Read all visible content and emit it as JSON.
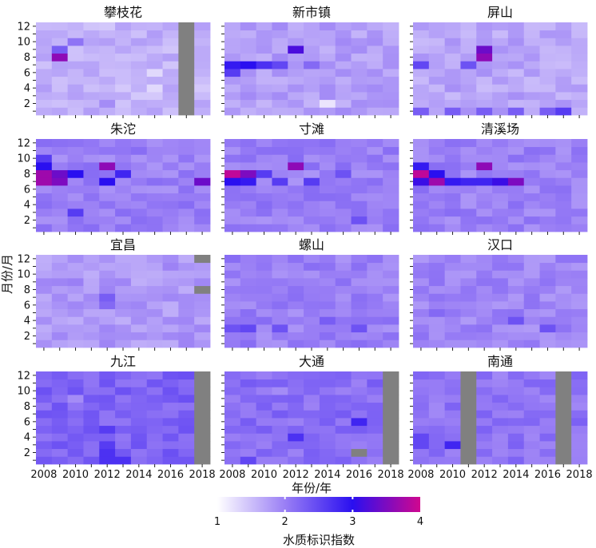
{
  "chart_data": {
    "type": "heatmap",
    "xlabel": "年份/年",
    "ylabel": "月份/月",
    "x_ticks": [
      2008,
      2010,
      2012,
      2014,
      2016,
      2018
    ],
    "y_ticks": [
      2,
      4,
      6,
      8,
      10,
      12
    ],
    "years": [
      2008,
      2009,
      2010,
      2011,
      2012,
      2013,
      2014,
      2015,
      2016,
      2017,
      2018
    ],
    "months": [
      1,
      2,
      3,
      4,
      5,
      6,
      7,
      8,
      9,
      10,
      11,
      12
    ],
    "colorbar": {
      "label": "水质标识指数",
      "range": [
        1,
        4
      ],
      "ticks": [
        1,
        2,
        3,
        4
      ],
      "colors": [
        "#ffffff",
        "#9a7ff5",
        "#2a0ff0",
        "#d0078f"
      ],
      "missing_color": "#808080"
    },
    "panels": [
      {
        "station": "攀枝花",
        "base": 1.6,
        "cells": [
          {
            "year": 2009,
            "month": 8,
            "value": 3.6
          },
          {
            "year": 2009,
            "month": 9,
            "value": 2.3
          },
          {
            "year": 2010,
            "month": 10,
            "value": 2.1
          },
          {
            "year": 2012,
            "month": 2,
            "value": 1.9
          },
          {
            "year": 2015,
            "month": 4,
            "value": 1.3
          },
          {
            "year": 2015,
            "month": 6,
            "value": 1.3
          }
        ],
        "missing": [
          {
            "year": 2017,
            "months": [
              1,
              2,
              3,
              4,
              5,
              6,
              7,
              8,
              9,
              10,
              11,
              12
            ]
          }
        ]
      },
      {
        "station": "新市镇",
        "base": 1.75,
        "cells": [
          {
            "year": 2008,
            "month": 6,
            "value": 2.6
          },
          {
            "year": 2008,
            "month": 7,
            "value": 2.9
          },
          {
            "year": 2009,
            "month": 7,
            "value": 3.0
          },
          {
            "year": 2010,
            "month": 7,
            "value": 2.7
          },
          {
            "year": 2011,
            "month": 7,
            "value": 2.5
          },
          {
            "year": 2012,
            "month": 9,
            "value": 3.2
          },
          {
            "year": 2013,
            "month": 7,
            "value": 2.2
          },
          {
            "year": 2014,
            "month": 2,
            "value": 1.2
          }
        ],
        "missing": []
      },
      {
        "station": "屏山",
        "base": 1.7,
        "cells": [
          {
            "year": 2012,
            "month": 8,
            "value": 3.6
          },
          {
            "year": 2012,
            "month": 9,
            "value": 3.4
          },
          {
            "year": 2008,
            "month": 7,
            "value": 2.5
          },
          {
            "year": 2011,
            "month": 7,
            "value": 2.4
          },
          {
            "year": 2008,
            "month": 1,
            "value": 2.3
          },
          {
            "year": 2010,
            "month": 1,
            "value": 2.3
          },
          {
            "year": 2012,
            "month": 1,
            "value": 2.3
          },
          {
            "year": 2014,
            "month": 1,
            "value": 2.3
          },
          {
            "year": 2016,
            "month": 1,
            "value": 2.3
          },
          {
            "year": 2017,
            "month": 1,
            "value": 2.6
          }
        ],
        "missing": []
      },
      {
        "station": "朱沱",
        "base": 2.0,
        "cells": [
          {
            "year": 2008,
            "month": 7,
            "value": 3.7
          },
          {
            "year": 2008,
            "month": 8,
            "value": 3.7
          },
          {
            "year": 2009,
            "month": 7,
            "value": 3.5
          },
          {
            "year": 2009,
            "month": 8,
            "value": 3.4
          },
          {
            "year": 2008,
            "month": 9,
            "value": 3.0
          },
          {
            "year": 2010,
            "month": 8,
            "value": 3.0
          },
          {
            "year": 2012,
            "month": 9,
            "value": 3.6
          },
          {
            "year": 2012,
            "month": 7,
            "value": 3.0
          },
          {
            "year": 2013,
            "month": 8,
            "value": 2.8
          },
          {
            "year": 2018,
            "month": 7,
            "value": 3.4
          },
          {
            "year": 2008,
            "month": 10,
            "value": 2.6
          },
          {
            "year": 2010,
            "month": 3,
            "value": 2.6
          }
        ],
        "missing": []
      },
      {
        "station": "寸滩",
        "base": 2.0,
        "cells": [
          {
            "year": 2008,
            "month": 8,
            "value": 3.9
          },
          {
            "year": 2009,
            "month": 8,
            "value": 3.5
          },
          {
            "year": 2008,
            "month": 7,
            "value": 3.0
          },
          {
            "year": 2009,
            "month": 7,
            "value": 2.9
          },
          {
            "year": 2010,
            "month": 8,
            "value": 2.6
          },
          {
            "year": 2012,
            "month": 9,
            "value": 3.6
          },
          {
            "year": 2011,
            "month": 7,
            "value": 2.6
          },
          {
            "year": 2013,
            "month": 7,
            "value": 2.6
          },
          {
            "year": 2015,
            "month": 8,
            "value": 2.4
          },
          {
            "year": 2016,
            "month": 2,
            "value": 2.4
          }
        ],
        "missing": []
      },
      {
        "station": "清溪场",
        "base": 2.0,
        "cells": [
          {
            "year": 2008,
            "month": 8,
            "value": 3.9
          },
          {
            "year": 2009,
            "month": 7,
            "value": 3.7
          },
          {
            "year": 2008,
            "month": 7,
            "value": 3.1
          },
          {
            "year": 2009,
            "month": 8,
            "value": 3.0
          },
          {
            "year": 2008,
            "month": 9,
            "value": 2.9
          },
          {
            "year": 2010,
            "month": 7,
            "value": 2.9
          },
          {
            "year": 2011,
            "month": 7,
            "value": 2.8
          },
          {
            "year": 2012,
            "month": 7,
            "value": 2.8
          },
          {
            "year": 2012,
            "month": 9,
            "value": 3.6
          },
          {
            "year": 2013,
            "month": 7,
            "value": 3.1
          },
          {
            "year": 2014,
            "month": 7,
            "value": 3.5
          }
        ],
        "missing": []
      },
      {
        "station": "宜昌",
        "base": 1.8,
        "cells": [
          {
            "year": 2012,
            "month": 6,
            "value": 2.2
          },
          {
            "year": 2012,
            "month": 7,
            "value": 2.3
          },
          {
            "year": 2010,
            "month": 9,
            "value": 2.0
          }
        ],
        "missing": [
          {
            "year": 2018,
            "months": [
              8,
              12
            ]
          }
        ]
      },
      {
        "station": "螺山",
        "base": 2.0,
        "cells": [
          {
            "year": 2008,
            "month": 3,
            "value": 2.4
          },
          {
            "year": 2009,
            "month": 3,
            "value": 2.5
          },
          {
            "year": 2011,
            "month": 3,
            "value": 2.4
          },
          {
            "year": 2014,
            "month": 4,
            "value": 2.3
          },
          {
            "year": 2016,
            "month": 3,
            "value": 2.4
          }
        ],
        "missing": []
      },
      {
        "station": "汉口",
        "base": 1.95,
        "cells": [
          {
            "year": 2014,
            "month": 4,
            "value": 2.4
          },
          {
            "year": 2016,
            "month": 3,
            "value": 2.4
          },
          {
            "year": 2009,
            "month": 5,
            "value": 2.2
          }
        ],
        "missing": []
      },
      {
        "station": "九江",
        "base": 2.25,
        "cells": [
          {
            "year": 2012,
            "month": 1,
            "value": 2.7
          },
          {
            "year": 2012,
            "month": 2,
            "value": 2.7
          },
          {
            "year": 2013,
            "month": 1,
            "value": 2.7
          },
          {
            "year": 2012,
            "month": 3,
            "value": 2.6
          },
          {
            "year": 2012,
            "month": 5,
            "value": 2.6
          },
          {
            "year": 2010,
            "month": 9,
            "value": 1.9
          }
        ],
        "missing": [
          {
            "year": 2018,
            "months": [
              1,
              2,
              3,
              4,
              5,
              6,
              7,
              8,
              9,
              10,
              11,
              12
            ]
          }
        ]
      },
      {
        "station": "大通",
        "base": 2.15,
        "cells": [
          {
            "year": 2012,
            "month": 4,
            "value": 2.7
          },
          {
            "year": 2016,
            "month": 6,
            "value": 2.8
          },
          {
            "year": 2009,
            "month": 1,
            "value": 2.5
          },
          {
            "year": 2011,
            "month": 10,
            "value": 1.9
          }
        ],
        "missing": [
          {
            "year": 2016,
            "months": [
              2
            ]
          },
          {
            "year": 2018,
            "months": [
              1,
              2,
              3,
              4,
              5,
              6,
              7,
              8,
              9,
              10,
              11,
              12
            ]
          }
        ]
      },
      {
        "station": "南通",
        "base": 2.1,
        "cells": [
          {
            "year": 2010,
            "month": 3,
            "value": 2.8
          },
          {
            "year": 2008,
            "month": 4,
            "value": 2.5
          },
          {
            "year": 2008,
            "month": 3,
            "value": 2.5
          }
        ],
        "missing": [
          {
            "year": 2011,
            "months": [
              1,
              2,
              3,
              4,
              5,
              6,
              7,
              8,
              9,
              10,
              11,
              12
            ]
          },
          {
            "year": 2017,
            "months": [
              1,
              2,
              3,
              4,
              5,
              6,
              7,
              8,
              9,
              10,
              11,
              12
            ]
          }
        ]
      }
    ]
  }
}
